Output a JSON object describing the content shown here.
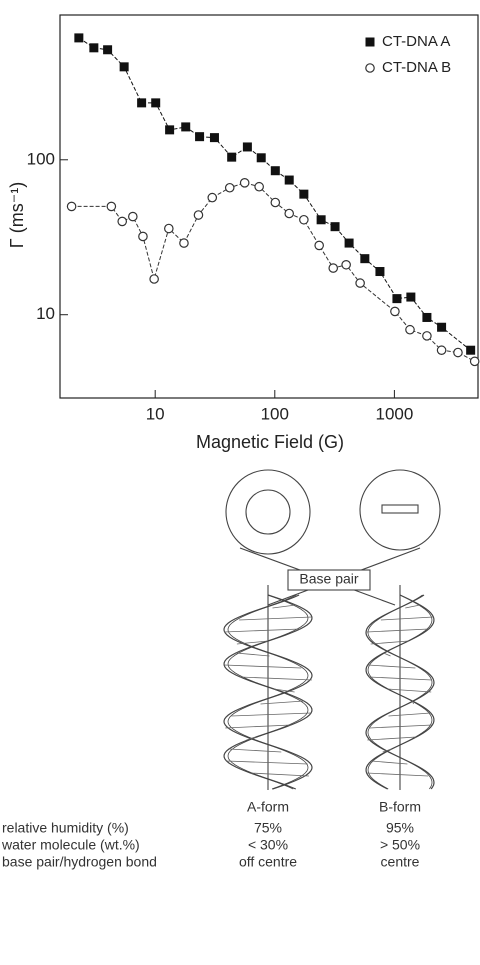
{
  "chart_data": {
    "type": "scatter",
    "xlabel": "Magnetic Field (G)",
    "ylabel": "Γ (ms⁻¹)",
    "xscale": "log",
    "yscale": "log",
    "xlim": [
      1.6,
      5000
    ],
    "ylim": [
      2.9,
      860
    ],
    "xticks": [
      10,
      100,
      1000
    ],
    "yticks": [
      10,
      100
    ],
    "legend": "upper right",
    "series": [
      {
        "name": "CT-DNA A",
        "color": "#111111",
        "marker": "square",
        "x": [
          2.3,
          3.07,
          4.0,
          5.5,
          7.7,
          10.1,
          13.2,
          18,
          23.5,
          31.3,
          43.6,
          59,
          77,
          101,
          132,
          175,
          244,
          319,
          418,
          566,
          757,
          1050,
          1373,
          1870,
          2480,
          4340
        ],
        "values": [
          612,
          528,
          513,
          398,
          233,
          233,
          156,
          163,
          141,
          139,
          104,
          121,
          103,
          85,
          74,
          60,
          41,
          37,
          29,
          23,
          19,
          12.7,
          13,
          9.6,
          8.3,
          5.9
        ]
      },
      {
        "name": "CT-DNA B",
        "color": "#333333",
        "marker": "circle",
        "x": [
          2.0,
          4.3,
          5.3,
          6.5,
          7.9,
          9.8,
          13,
          17.4,
          23,
          30,
          42,
          56,
          74,
          101,
          132,
          175,
          235,
          308,
          395,
          517,
          1010,
          1350,
          1870,
          2480,
          3400,
          4690
        ],
        "values": [
          50,
          50,
          40,
          43,
          32,
          17,
          36,
          29,
          44,
          57,
          66,
          71,
          67,
          53,
          45,
          41,
          28,
          20,
          21,
          16,
          10.5,
          8.0,
          7.3,
          5.9,
          5.7,
          5.0
        ]
      }
    ]
  },
  "diagram": {
    "callout": "Base pair",
    "columns": [
      "A-form",
      "B-form"
    ],
    "rows": [
      {
        "label": "relative humidity (%)",
        "cells": [
          "75%",
          "95%"
        ]
      },
      {
        "label": "water molecule (wt.%)",
        "cells": [
          "< 30%",
          "> 50%"
        ]
      },
      {
        "label": "base pair/hydrogen bond",
        "cells": [
          "off centre",
          "centre"
        ]
      }
    ]
  }
}
